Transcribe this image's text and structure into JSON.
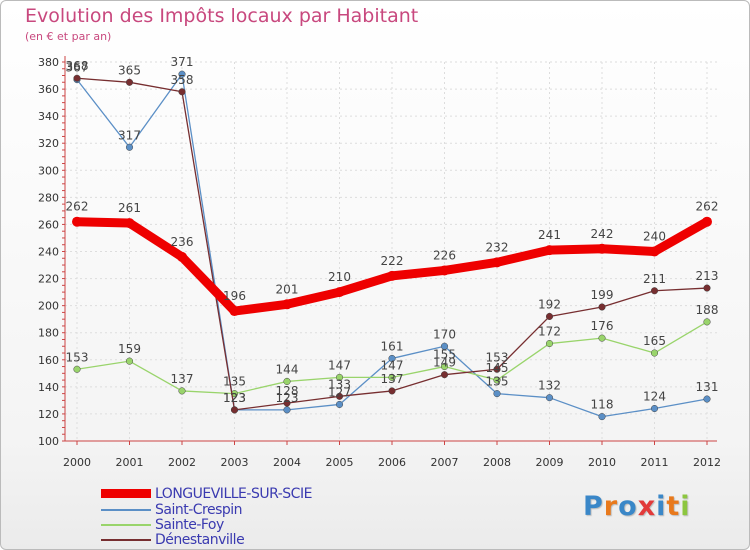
{
  "chart_data": {
    "type": "line",
    "title": "Evolution des Impôts locaux par Habitant",
    "subtitle": "(en € et par an)",
    "xlabel": "",
    "ylabel": "",
    "ylim": [
      100,
      380
    ],
    "yticks": [
      100,
      120,
      140,
      160,
      180,
      200,
      220,
      240,
      260,
      280,
      300,
      320,
      340,
      360,
      380
    ],
    "grid": true,
    "x": [
      "2000",
      "2001",
      "2002",
      "2003",
      "2004",
      "2005",
      "2006",
      "2007",
      "2008",
      "2009",
      "2010",
      "2011",
      "2012"
    ],
    "series": [
      {
        "name": "Saint-Crespin",
        "color": "#5b8fc6",
        "values": [
          367,
          317,
          371,
          123,
          123,
          127,
          161,
          170,
          135,
          132,
          118,
          124,
          131
        ]
      },
      {
        "name": "Sainte-Foy",
        "color": "#99d46b",
        "values": [
          153,
          159,
          137,
          135,
          144,
          147,
          147,
          155,
          145,
          172,
          176,
          165,
          188
        ]
      },
      {
        "name": "Dénestanville",
        "color": "#772e30",
        "values": [
          368,
          365,
          358,
          123,
          128,
          133,
          137,
          149,
          153,
          192,
          199,
          211,
          213
        ]
      },
      {
        "name": "LONGUEVILLE-SUR-SCIE",
        "color": "#ee0000",
        "values": [
          262,
          261,
          236,
          196,
          201,
          210,
          222,
          226,
          232,
          241,
          242,
          240,
          262
        ]
      }
    ],
    "legend_order": [
      "LONGUEVILLE-SUR-SCIE",
      "Saint-Crespin",
      "Sainte-Foy",
      "Dénestanville"
    ],
    "legend_position": "bottom-left"
  },
  "logo": {
    "letters": [
      "P",
      "r",
      "o",
      "x",
      "i",
      "t",
      "i"
    ],
    "colors": [
      "#3a87c8",
      "#e8791c",
      "#3a87c8",
      "#e23a3a",
      "#3a87c8",
      "#e8791c",
      "#8cc63f"
    ]
  }
}
